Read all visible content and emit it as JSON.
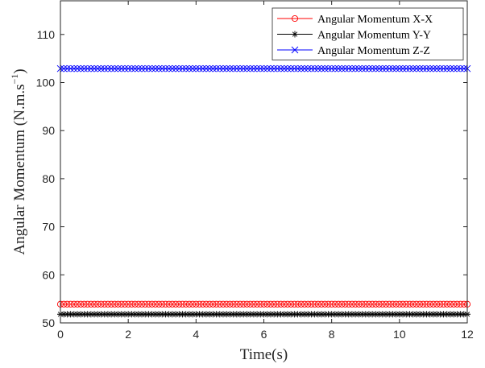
{
  "chart_data": {
    "type": "line",
    "xlabel": "Time(s)",
    "ylabel_main": "Angular Momentum (N.m.s",
    "ylabel_sup": "−1",
    "ylabel_tail": ")",
    "xlim": [
      0,
      12
    ],
    "ylim": [
      50,
      117
    ],
    "xticks": [
      0,
      2,
      4,
      6,
      8,
      10,
      12
    ],
    "yticks": [
      50,
      60,
      70,
      80,
      90,
      100,
      110
    ],
    "grid": false,
    "legend_position": "top-right",
    "series": [
      {
        "name": "Angular Momentum X-X",
        "color": "#ff0000",
        "marker": "circle",
        "x": [
          0,
          12
        ],
        "y": [
          53.9,
          53.9
        ]
      },
      {
        "name": "Angular Momentum Y-Y",
        "color": "#000000",
        "marker": "asterisk",
        "x": [
          0,
          12
        ],
        "y": [
          51.8,
          51.8
        ]
      },
      {
        "name": "Angular Momentum Z-Z",
        "color": "#0000ff",
        "marker": "x",
        "x": [
          0,
          12
        ],
        "y": [
          102.9,
          102.9
        ]
      }
    ]
  }
}
